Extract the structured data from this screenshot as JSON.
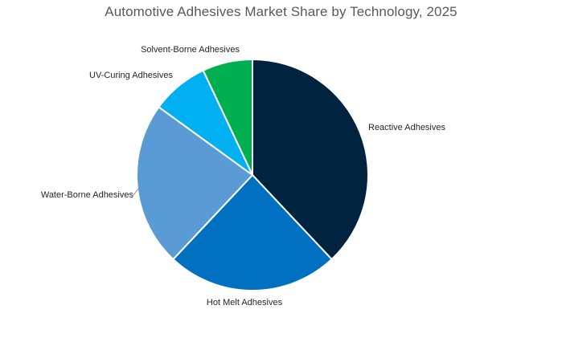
{
  "chart_data": {
    "type": "pie",
    "title": "Automotive Adhesives Market Share by Technology, 2025",
    "start_angle_deg": 0,
    "direction": "clockwise",
    "legend": "none",
    "slices": [
      {
        "label": "Reactive Adhesives",
        "value": 38,
        "color": "#002440"
      },
      {
        "label": "Hot Melt Adhesives",
        "value": 24,
        "color": "#0070C0"
      },
      {
        "label": "Water-Borne Adhesives",
        "value": 23,
        "color": "#5B9BD5"
      },
      {
        "label": "UV-Curing Adhesives",
        "value": 8,
        "color": "#00B0F0"
      },
      {
        "label": "Solvent-Borne Adhesives",
        "value": 7,
        "color": "#00B050"
      }
    ]
  }
}
